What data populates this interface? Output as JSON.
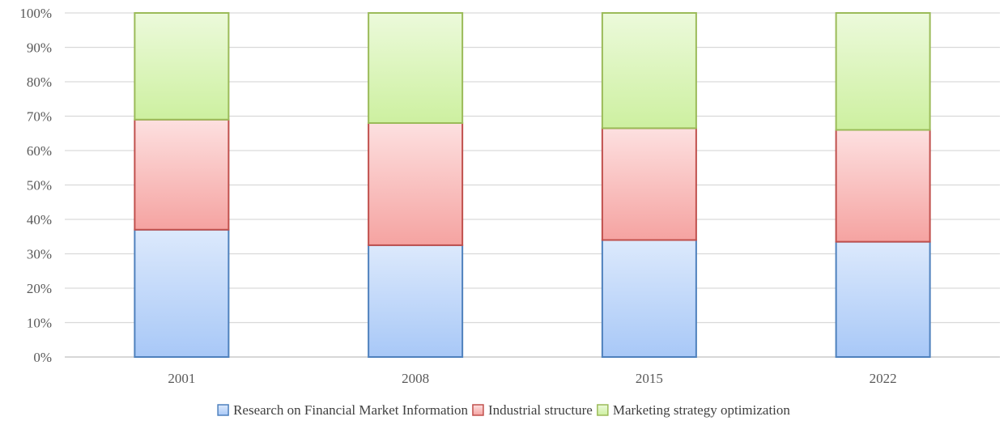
{
  "chart_data": {
    "type": "bar",
    "stacked": true,
    "normalized": true,
    "categories": [
      "2001",
      "2008",
      "2015",
      "2022"
    ],
    "series": [
      {
        "name": "Research on Financial Market Information",
        "values": [
          37,
          32.5,
          34,
          33.5
        ],
        "color": "#4f81bd",
        "fill_top": "#dce9fc",
        "fill_bottom": "#a8c8f7"
      },
      {
        "name": "Industrial structure",
        "values": [
          32,
          35.5,
          32.5,
          32.5
        ],
        "color": "#c0504d",
        "fill_top": "#fde0e0",
        "fill_bottom": "#f5a3a1"
      },
      {
        "name": "Marketing strategy optimization",
        "values": [
          31,
          32,
          33.5,
          34
        ],
        "color": "#9bbb59",
        "fill_top": "#ecfadb",
        "fill_bottom": "#cdf0a0"
      }
    ],
    "y_ticks": [
      "0%",
      "10%",
      "20%",
      "30%",
      "40%",
      "50%",
      "60%",
      "70%",
      "80%",
      "90%",
      "100%"
    ],
    "ylim": [
      0,
      100
    ],
    "grid": true,
    "legend_position": "bottom",
    "title": "",
    "xlabel": "",
    "ylabel": ""
  }
}
